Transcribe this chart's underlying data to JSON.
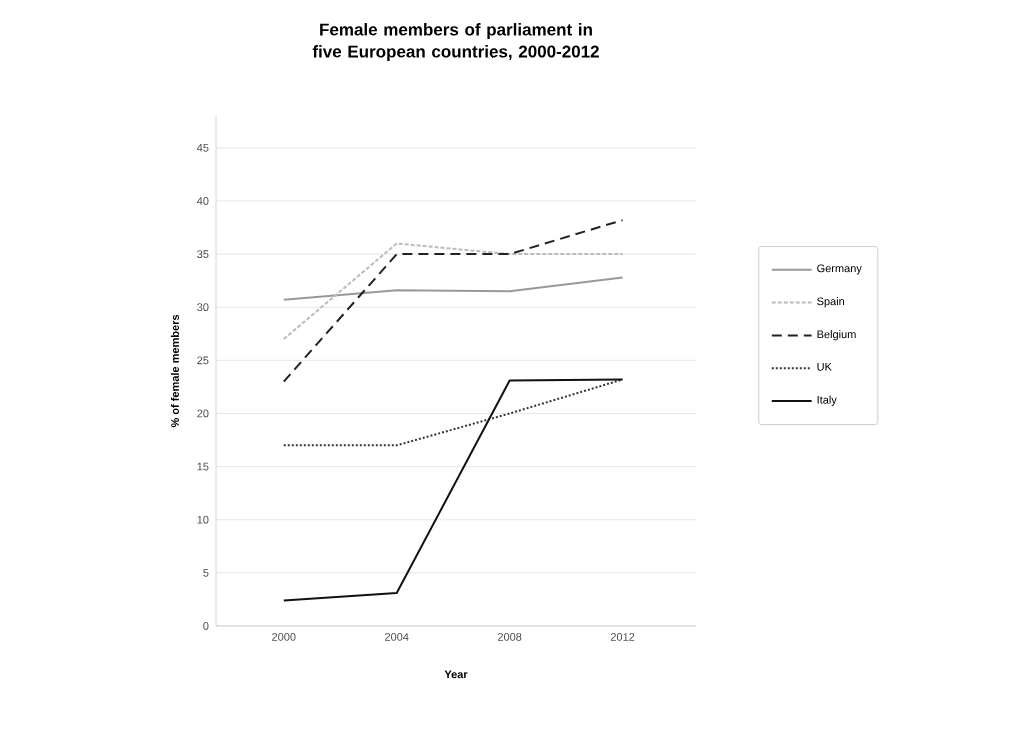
{
  "chart_data": {
    "type": "line",
    "title": "Female members of parliament in five European countries, 2000-2012",
    "xlabel": "Year",
    "ylabel": "% of female members",
    "categories": [
      "2000",
      "2004",
      "2008",
      "2012"
    ],
    "ylim": [
      0,
      48
    ],
    "yticks": [
      0,
      5,
      10,
      15,
      20,
      25,
      30,
      35,
      40,
      45
    ],
    "grid": "y",
    "legend": "right",
    "marker": "none",
    "series": [
      {
        "name": "Germany",
        "color": "#999999",
        "line_style": "solid",
        "values": [
          30.7,
          31.6,
          31.5,
          32.8
        ]
      },
      {
        "name": "Spain",
        "color": "#bbbbbb",
        "line_style": "dashed",
        "values": [
          27,
          36,
          35,
          35
        ]
      },
      {
        "name": "Belgium",
        "color": "#222222",
        "line_style": "dashed",
        "values": [
          23,
          35,
          35,
          38.2
        ]
      },
      {
        "name": "UK",
        "color": "#333333",
        "line_style": "dotted",
        "values": [
          17,
          17,
          20,
          23.2
        ]
      },
      {
        "name": "Italy",
        "color": "#111111",
        "line_style": "solid",
        "values": [
          2.4,
          3.1,
          23.1,
          23.2
        ]
      }
    ]
  }
}
